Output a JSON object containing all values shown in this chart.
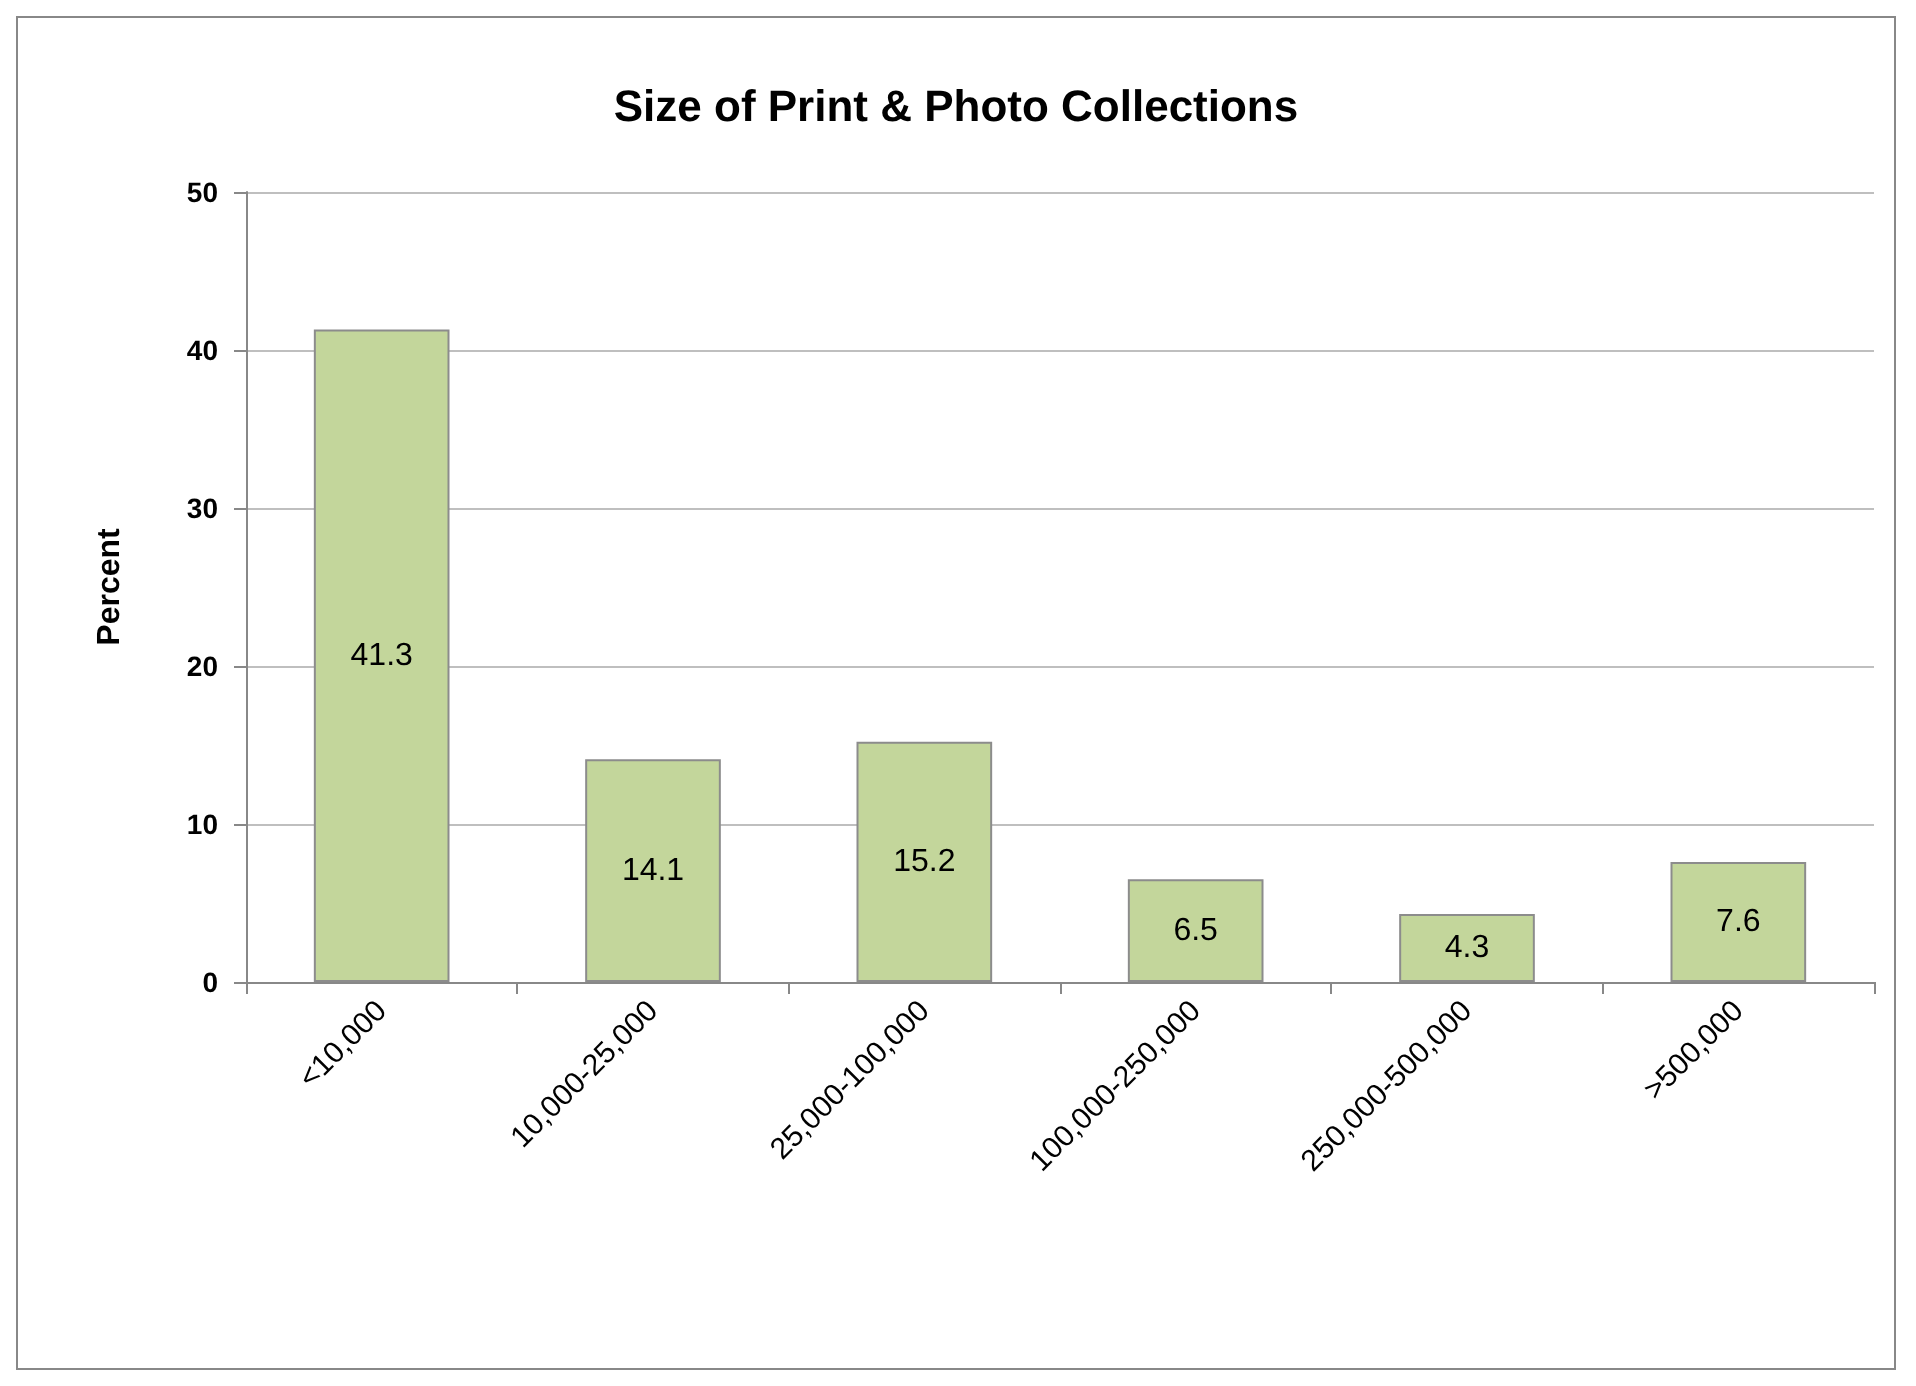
{
  "chart_data": {
    "type": "bar",
    "title": "Size of Print & Photo Collections",
    "ylabel": "Percent",
    "categories": [
      "<10,000",
      "10,000-25,000",
      "25,000-100,000",
      "100,000-250,000",
      "250,000-500,000",
      ">500,000"
    ],
    "values": [
      41.3,
      14.1,
      15.2,
      6.5,
      4.3,
      7.6
    ],
    "color": "#c3d69b",
    "ylim": [
      0,
      50
    ],
    "yticks": [
      0,
      10,
      20,
      30,
      40,
      50
    ],
    "grid": "y",
    "data_labels": true
  }
}
